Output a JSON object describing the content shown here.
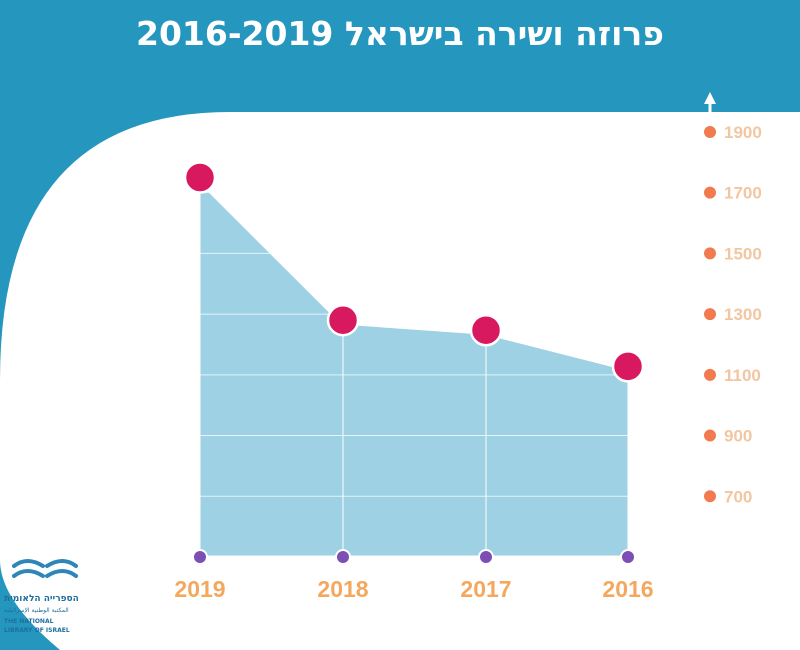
{
  "chart_data": {
    "type": "area",
    "title": "פרוזה ושירה בישראל 2016-2019",
    "categories": [
      "2019",
      "2018",
      "2017",
      "2016"
    ],
    "values": [
      1750,
      1280,
      1247,
      1128
    ],
    "data_labels": [
      "1750",
      "1280",
      "1247",
      "1128"
    ],
    "y_ticks": [
      700,
      900,
      1100,
      1300,
      1500,
      1700,
      1900
    ],
    "ylim": [
      500,
      1900
    ],
    "y_axis_side": "right",
    "x_axis_direction": "right-to-left",
    "grid": true,
    "xlabel": "",
    "ylabel": ""
  },
  "colors": {
    "background": "#2596be",
    "panel": "#ffffff",
    "area_fill": "#9dd1e3",
    "line": "#ffffff",
    "point": "#d8185f",
    "x_marker": "#7b4fb5",
    "y_marker": "#f27a4f",
    "tick_label": "#f2c6a0",
    "x_label": "#f3a85d"
  },
  "logo": {
    "hebrew_name": "הספרייה הלאומית",
    "arabic_name": "المكتبة الوطنية الإسرائيلية",
    "english_line1": "THE NATIONAL",
    "english_line2": "LIBRARY OF ISRAEL"
  }
}
